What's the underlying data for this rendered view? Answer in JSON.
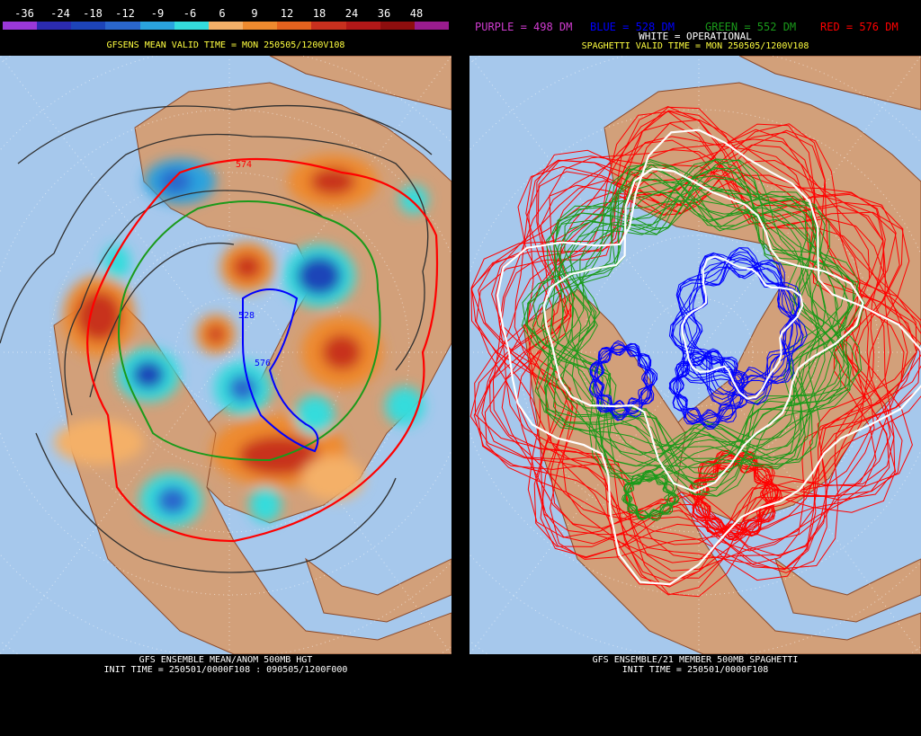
{
  "left": {
    "colorbar": {
      "labels": [
        "-36",
        "-24",
        "-18",
        "-12",
        "-9",
        "-6",
        "6",
        "9",
        "12",
        "18",
        "24",
        "36",
        "48"
      ],
      "colors": [
        "#9a38d8",
        "#2b2bb0",
        "#1d44b8",
        "#2a66cc",
        "#2aa3de",
        "#34dcdc",
        "#f4b068",
        "#ee8a2e",
        "#e4621e",
        "#c8301e",
        "#b21818",
        "#8e0e0e",
        "#9a1c8e"
      ]
    },
    "header": "GFSENS MEAN VALID TIME = MON 250505/1200V108",
    "map_contour_label": "574",
    "map_contour_label_2": "528",
    "map_contour_label_3": "576",
    "footer_line1": "GFS ENSEMBLE MEAN/ANOM 500MB HGT",
    "footer_line2": "INIT TIME = 250501/0000F108 : 090505/1200F000"
  },
  "right": {
    "legend": {
      "purple": "PURPLE = 498 DM",
      "blue": "BLUE = 528 DM",
      "green": "GREEN = 552 DM",
      "red": "RED = 576 DM",
      "white": "WHITE = OPERATIONAL"
    },
    "header": "SPAGHETTI VALID TIME = MON 250505/1200V108",
    "footer_line1": "GFS ENSEMBLE/21 MEMBER 500MB SPAGHETTI",
    "footer_line2": "INIT TIME = 250501/0000F108"
  },
  "colors": {
    "ocean": "#a6c8ec",
    "land": "#d2a07a",
    "border": "#8c4a2a",
    "purple": "#d23cd2",
    "blue": "#0000ff",
    "green": "#1a9a1a",
    "red": "#ff0000",
    "white": "#ffffff",
    "header_yellow": "#ffff40"
  }
}
